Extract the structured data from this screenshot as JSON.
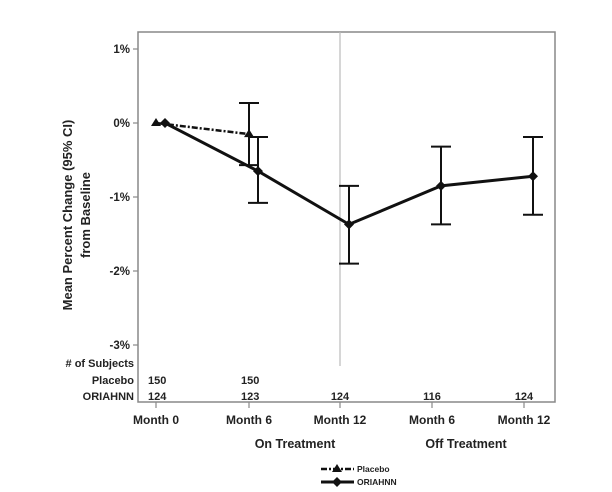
{
  "chart_data": {
    "type": "line",
    "title": "",
    "ylabel": "Mean Percent Change (95% CI) from Baseline",
    "ylabel_lines": [
      "Mean Percent Change (95% CI)",
      "from Baseline"
    ],
    "ylim": [
      -3,
      1
    ],
    "yticks": [
      "1%",
      "0%",
      "-1%",
      "-2%",
      "-3%"
    ],
    "ytick_values": [
      1,
      0,
      -1,
      -2,
      -3
    ],
    "categories": [
      "Month 0",
      "Month 6",
      "Month 12",
      "Month 6",
      "Month 12"
    ],
    "groups": [
      {
        "label": "On Treatment"
      },
      {
        "label": "Off Treatment"
      }
    ],
    "grid": false,
    "series": [
      {
        "name": "Placebo",
        "style": "dash-dot",
        "marker": "triangle",
        "values": [
          0,
          -0.15,
          null,
          null,
          null
        ],
        "ci_low": [
          null,
          -0.57,
          null,
          null,
          null
        ],
        "ci_high": [
          null,
          0.27,
          null,
          null,
          null
        ]
      },
      {
        "name": "ORIAHNN",
        "style": "solid",
        "marker": "diamond",
        "values": [
          0,
          -0.65,
          -1.37,
          -0.85,
          -0.72
        ],
        "ci_low": [
          null,
          -1.08,
          -1.9,
          -1.37,
          -1.24
        ],
        "ci_high": [
          null,
          -0.19,
          -0.85,
          -0.32,
          -0.19
        ]
      }
    ],
    "subjects": {
      "header": "# of Subjects",
      "rows": [
        {
          "label": "Placebo",
          "counts": [
            "150",
            "150",
            "",
            "",
            ""
          ]
        },
        {
          "label": "ORIAHNN",
          "counts": [
            "124",
            "123",
            "124",
            "116",
            "124"
          ]
        }
      ]
    },
    "legend": {
      "placement": "bottom",
      "entries": [
        "Placebo",
        "ORIAHNN"
      ]
    },
    "colors": {
      "line": "#111111",
      "divider": "#bbbbbb",
      "frame": "#888888"
    }
  }
}
